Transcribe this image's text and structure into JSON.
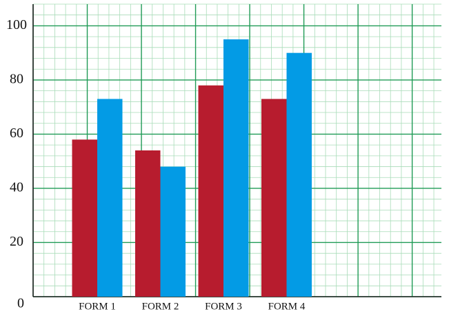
{
  "chart_data": {
    "type": "bar",
    "categories": [
      "FORM 1",
      "FORM 2",
      "FORM 3",
      "FORM 4"
    ],
    "series": [
      {
        "color": "#b71c2e",
        "values": [
          58,
          54,
          78,
          73
        ]
      },
      {
        "color": "#039be5",
        "values": [
          73,
          48,
          95,
          90
        ]
      }
    ],
    "ylim": [
      0,
      108
    ],
    "yticks": [
      0,
      20,
      40,
      60,
      80,
      100
    ],
    "grid": true
  }
}
